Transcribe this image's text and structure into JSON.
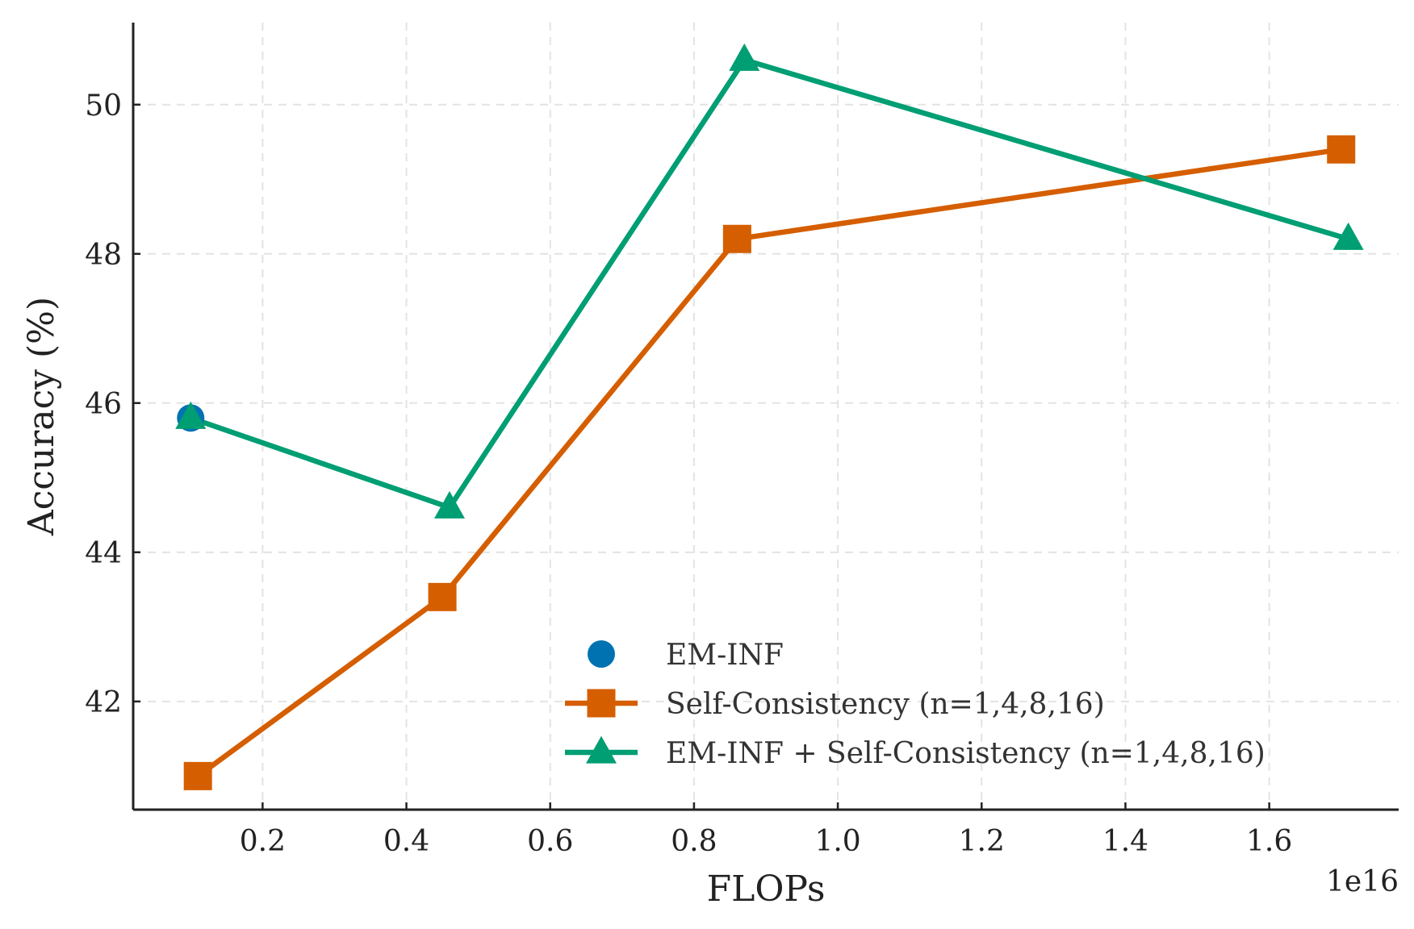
{
  "chart_data": {
    "type": "line",
    "title": "",
    "xlabel": "FLOPs",
    "ylabel": "Accuracy (%)",
    "x_offset_label": "1e16",
    "xlim": [
      0.02,
      1.78
    ],
    "ylim": [
      40.55,
      51.1
    ],
    "xticks": [
      0.2,
      0.4,
      0.6,
      0.8,
      1.0,
      1.2,
      1.4,
      1.6
    ],
    "xtick_labels": [
      "0.2",
      "0.4",
      "0.6",
      "0.8",
      "1.0",
      "1.2",
      "1.4",
      "1.6"
    ],
    "yticks": [
      42,
      44,
      46,
      48,
      50
    ],
    "ytick_labels": [
      "42",
      "44",
      "46",
      "48",
      "50"
    ],
    "grid": true,
    "legend_position": "lower-right",
    "series": [
      {
        "name": "EM-INF",
        "style": "scatter",
        "marker": "circle",
        "color": "#0072b2",
        "x": [
          0.1
        ],
        "y": [
          45.8
        ]
      },
      {
        "name": "Self-Consistency (n=1,4,8,16)",
        "style": "line",
        "marker": "square",
        "color": "#d55e00",
        "x": [
          0.11,
          0.45,
          0.86,
          1.7
        ],
        "y": [
          41.0,
          43.4,
          48.2,
          49.4
        ]
      },
      {
        "name": "EM-INF + Self-Consistency (n=1,4,8,16)",
        "style": "line",
        "marker": "triangle",
        "color": "#009e73",
        "x": [
          0.1,
          0.46,
          0.87,
          1.71
        ],
        "y": [
          45.8,
          44.6,
          50.6,
          48.2
        ]
      }
    ]
  }
}
